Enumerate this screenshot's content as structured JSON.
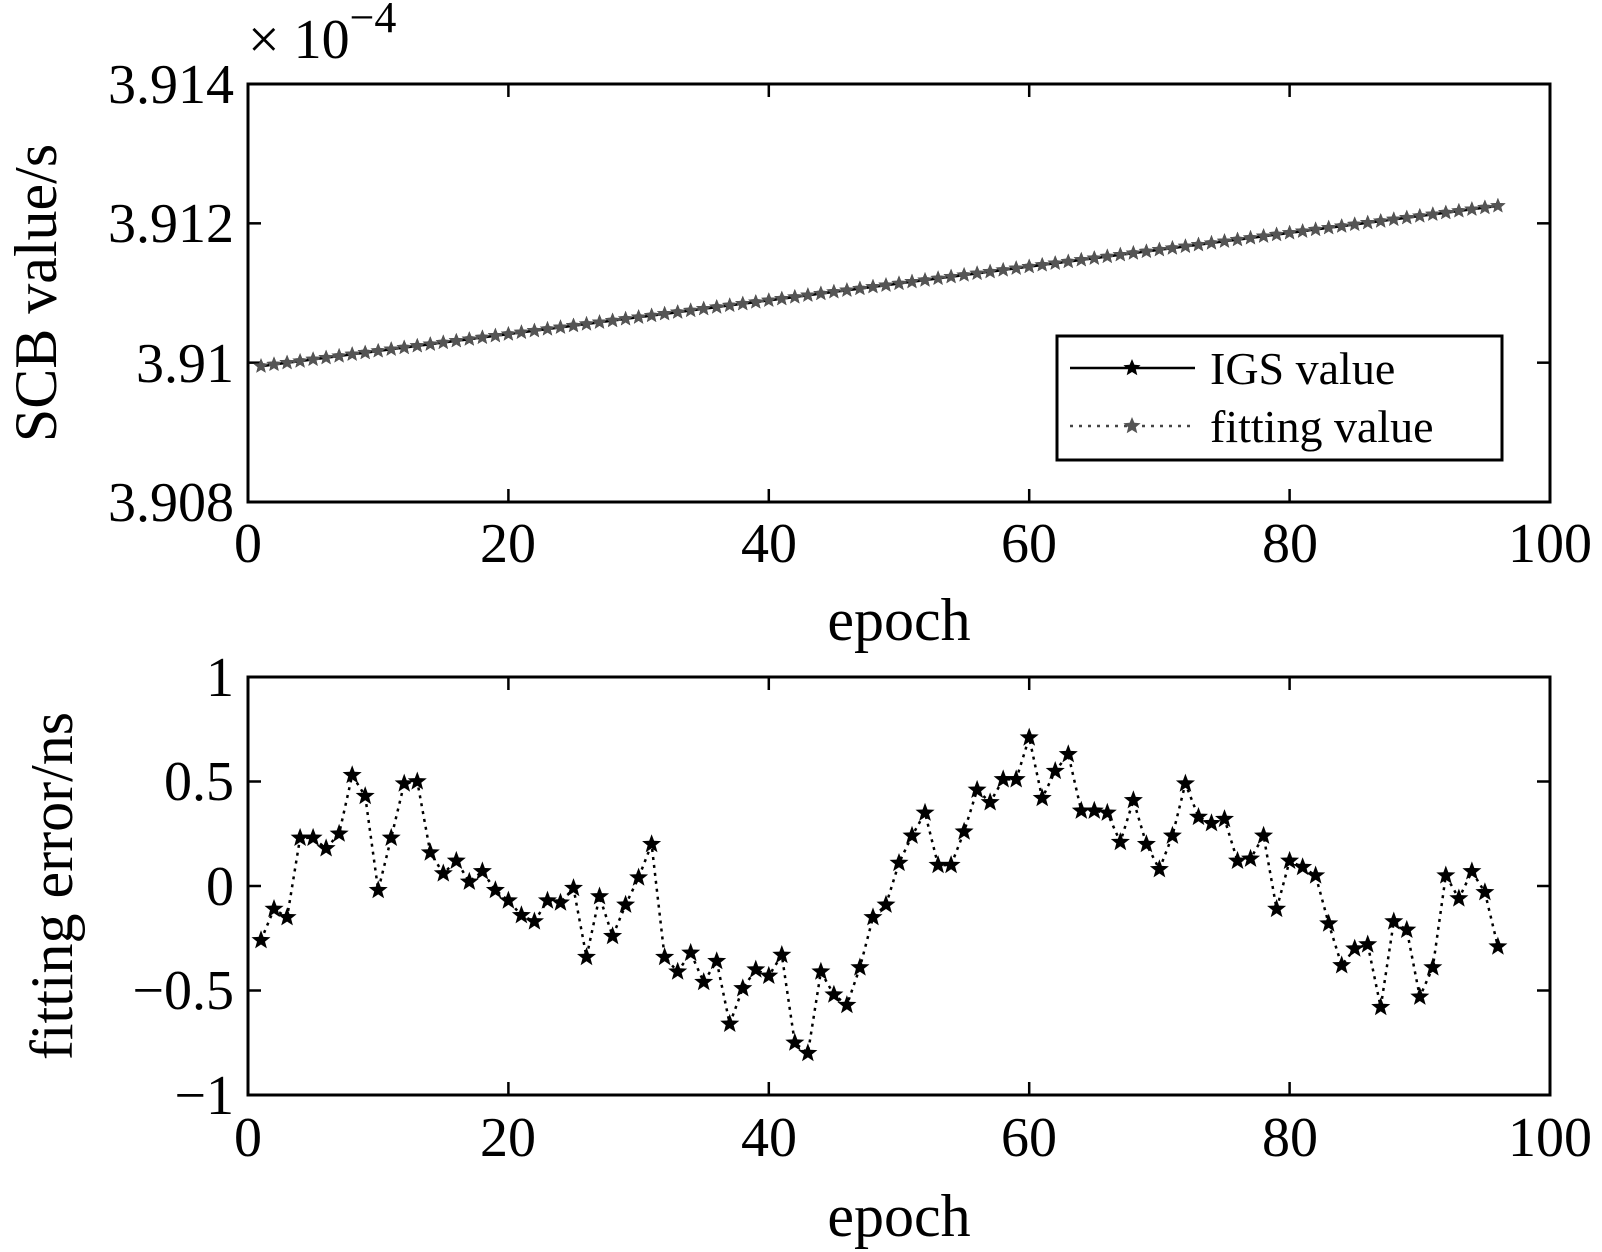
{
  "chart_data": [
    {
      "type": "line",
      "title": "",
      "xlabel": "epoch",
      "ylabel": "SCB value/s",
      "xlim": [
        0,
        100
      ],
      "ylim": [
        3.908,
        3.914
      ],
      "x_ticks": [
        "0",
        "20",
        "40",
        "60",
        "80",
        "100"
      ],
      "y_ticks": [
        "3.908",
        "3.91",
        "3.912",
        "3.914"
      ],
      "y_multiplier_prefix": "× 10",
      "y_multiplier_exponent": "−4",
      "legend": {
        "position": "lower-right",
        "entries": [
          "IGS value",
          "fitting value"
        ]
      },
      "series": [
        {
          "name": "IGS value",
          "style": "solid",
          "marker": "star",
          "color": "#000000",
          "x_start": 1,
          "x_end": 96,
          "y_start": 3.90995,
          "y_end": 3.91225
        },
        {
          "name": "fitting value",
          "style": "dotted",
          "marker": "star",
          "color": "#555555",
          "x_start": 1,
          "x_end": 96,
          "y_start": 3.90995,
          "y_end": 3.91225
        }
      ]
    },
    {
      "type": "line",
      "title": "",
      "xlabel": "epoch",
      "ylabel": "fitting error/ns",
      "xlim": [
        0,
        100
      ],
      "ylim": [
        -1,
        1
      ],
      "x_ticks": [
        "0",
        "20",
        "40",
        "60",
        "80",
        "100"
      ],
      "y_ticks": [
        "−1",
        "−0.5",
        "0",
        "0.5",
        "1"
      ],
      "series": [
        {
          "name": "fitting error",
          "style": "dotted",
          "marker": "star",
          "color": "#000000",
          "x": [
            1,
            2,
            3,
            4,
            5,
            6,
            7,
            8,
            9,
            10,
            11,
            12,
            13,
            14,
            15,
            16,
            17,
            18,
            19,
            20,
            21,
            22,
            23,
            24,
            25,
            26,
            27,
            28,
            29,
            30,
            31,
            32,
            33,
            34,
            35,
            36,
            37,
            38,
            39,
            40,
            41,
            42,
            43,
            44,
            45,
            46,
            47,
            48,
            49,
            50,
            51,
            52,
            53,
            54,
            55,
            56,
            57,
            58,
            59,
            60,
            61,
            62,
            63,
            64,
            65,
            66,
            67,
            68,
            69,
            70,
            71,
            72,
            73,
            74,
            75,
            76,
            77,
            78,
            79,
            80,
            81,
            82,
            83,
            84,
            85,
            86,
            87,
            88,
            89,
            90,
            91,
            92,
            93,
            94,
            95,
            96
          ],
          "y": [
            -0.26,
            -0.11,
            -0.15,
            0.23,
            0.23,
            0.18,
            0.25,
            0.53,
            0.43,
            -0.02,
            0.23,
            0.49,
            0.5,
            0.16,
            0.06,
            0.12,
            0.02,
            0.07,
            -0.02,
            -0.07,
            -0.14,
            -0.17,
            -0.07,
            -0.08,
            -0.01,
            -0.34,
            -0.05,
            -0.24,
            -0.09,
            0.04,
            0.2,
            -0.34,
            -0.41,
            -0.32,
            -0.46,
            -0.36,
            -0.66,
            -0.49,
            -0.4,
            -0.43,
            -0.33,
            -0.75,
            -0.8,
            -0.41,
            -0.52,
            -0.57,
            -0.39,
            -0.15,
            -0.09,
            0.11,
            0.24,
            0.35,
            0.1,
            0.1,
            0.26,
            0.46,
            0.4,
            0.51,
            0.51,
            0.71,
            0.42,
            0.55,
            0.63,
            0.36,
            0.36,
            0.35,
            0.21,
            0.41,
            0.2,
            0.08,
            0.24,
            0.49,
            0.33,
            0.3,
            0.32,
            0.12,
            0.13,
            0.24,
            -0.11,
            0.12,
            0.09,
            0.05,
            -0.18,
            -0.38,
            -0.3,
            -0.28,
            -0.58,
            -0.17,
            -0.21,
            -0.53,
            -0.39,
            0.05,
            -0.06,
            0.07,
            -0.03,
            -0.29
          ]
        }
      ]
    }
  ]
}
